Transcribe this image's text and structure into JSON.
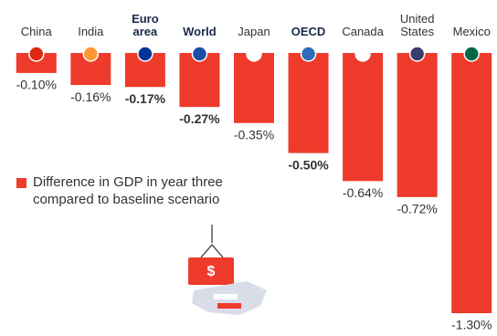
{
  "chart_data": {
    "type": "bar",
    "categories": [
      "China",
      "India",
      "Euro area",
      "World",
      "Japan",
      "OECD",
      "Canada",
      "United States",
      "Mexico"
    ],
    "emphasized": [
      false,
      false,
      true,
      true,
      false,
      true,
      false,
      false,
      false
    ],
    "series": [
      {
        "name": "Difference in GDP in year three compared to baseline scenario",
        "color": "#ee3b2b",
        "values": [
          -0.1,
          -0.16,
          -0.17,
          -0.27,
          -0.35,
          -0.5,
          -0.64,
          -0.72,
          -1.3
        ],
        "value_labels": [
          "-0.10%",
          "-0.16%",
          "-0.17%",
          "-0.27%",
          "-0.35%",
          "-0.50%",
          "-0.64%",
          "-0.72%",
          "-1.30%"
        ]
      }
    ],
    "ylim": [
      -1.3,
      0
    ]
  }
}
